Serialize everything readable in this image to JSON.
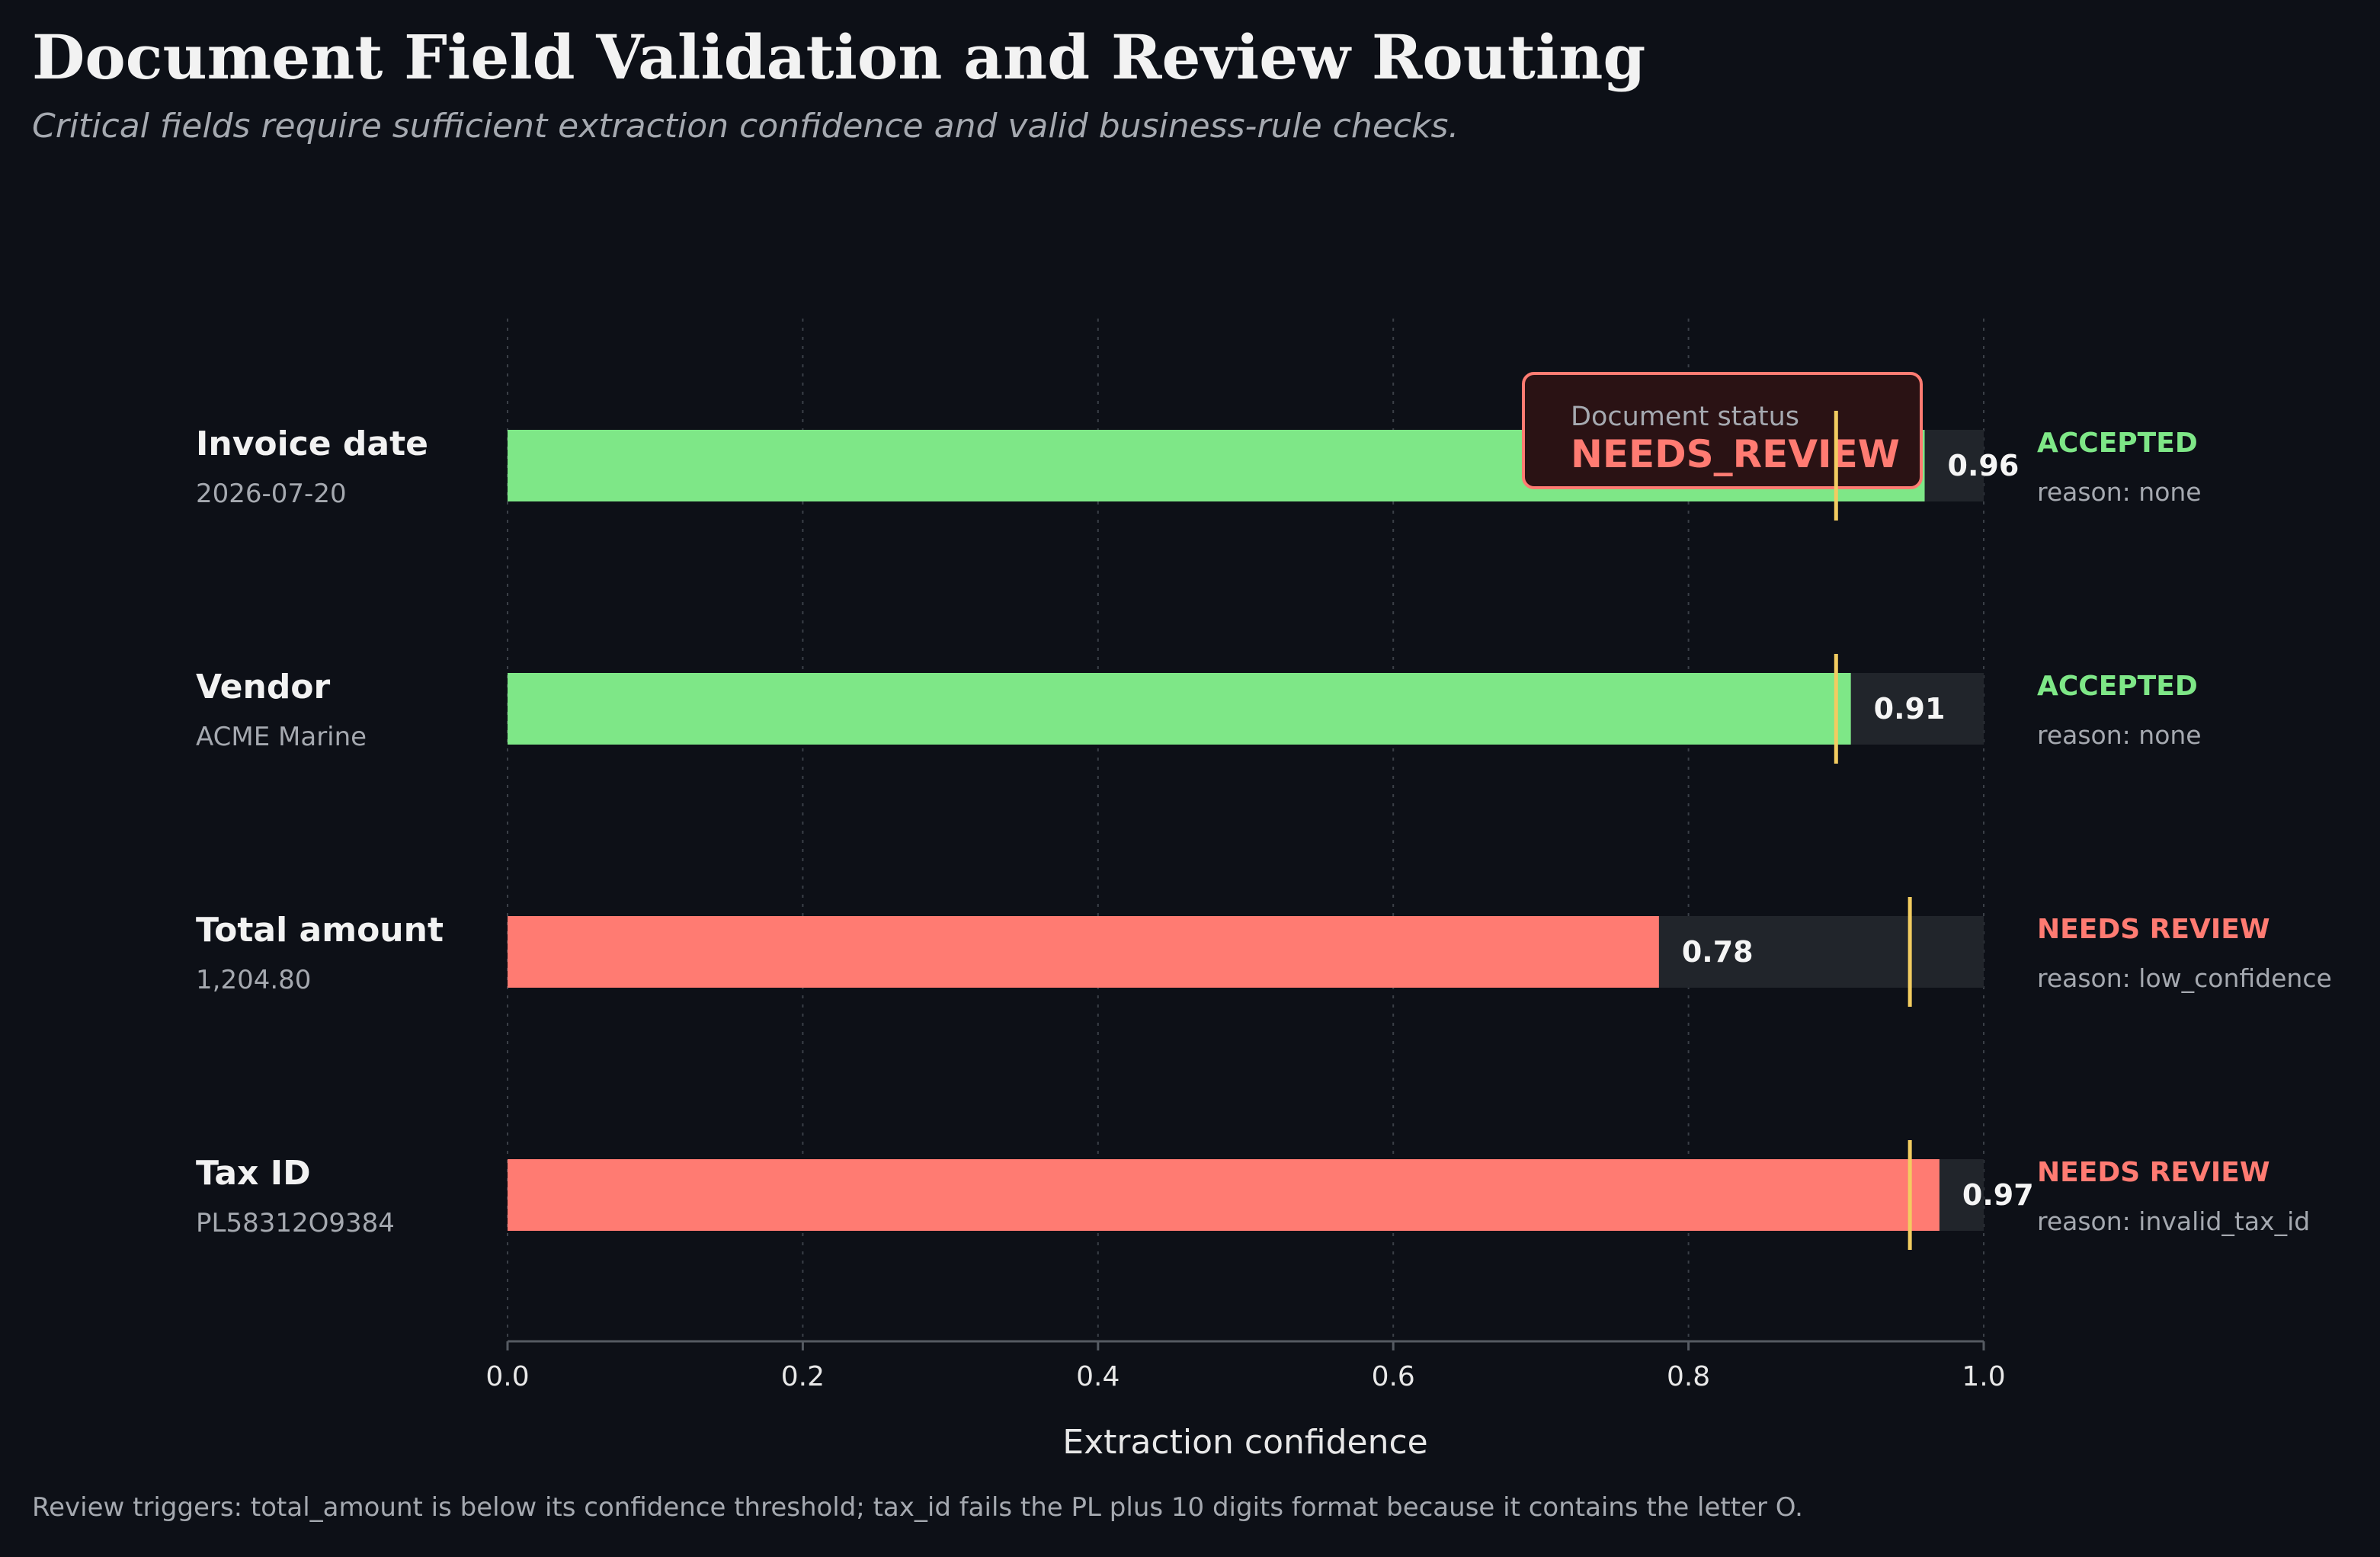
{
  "title": "Document Field Validation and Review Routing",
  "subtitle": "Critical fields require sufficient extraction confidence and valid business-rule checks.",
  "footnote": "Review triggers: total_amount is below its confidence threshold; tax_id fails the PL plus 10 digits format because it contains the letter O.",
  "colors": {
    "background": "#0d1017",
    "accepted": "#7ee787",
    "needs_review": "#ff7b72",
    "threshold": "#f2cc60",
    "track": "#21252b",
    "grid": "#3a3f47"
  },
  "status_box": {
    "label": "Document status",
    "value": "NEEDS_REVIEW"
  },
  "chart_data": {
    "type": "bar",
    "orientation": "horizontal",
    "xlabel": "Extraction confidence",
    "xlim": [
      0,
      1
    ],
    "x_ticks": [
      "0.0",
      "0.2",
      "0.4",
      "0.6",
      "0.8",
      "1.0"
    ],
    "grid": "vertical dotted",
    "fields": [
      {
        "name": "Invoice date",
        "value_text": "2026-07-20",
        "confidence": 0.96,
        "confidence_label": "0.96",
        "threshold": 0.9,
        "status": "ACCEPTED",
        "status_key": "accepted",
        "reason": "reason: none"
      },
      {
        "name": "Vendor",
        "value_text": "ACME Marine",
        "confidence": 0.91,
        "confidence_label": "0.91",
        "threshold": 0.9,
        "status": "ACCEPTED",
        "status_key": "accepted",
        "reason": "reason: none"
      },
      {
        "name": "Total amount",
        "value_text": "1,204.80",
        "confidence": 0.78,
        "confidence_label": "0.78",
        "threshold": 0.95,
        "status": "NEEDS REVIEW",
        "status_key": "needs_review",
        "reason": "reason: low_confidence"
      },
      {
        "name": "Tax ID",
        "value_text": "PL58312O9384",
        "confidence": 0.97,
        "confidence_label": "0.97",
        "threshold": 0.95,
        "status": "NEEDS REVIEW",
        "status_key": "needs_review",
        "reason": "reason: invalid_tax_id"
      }
    ]
  }
}
